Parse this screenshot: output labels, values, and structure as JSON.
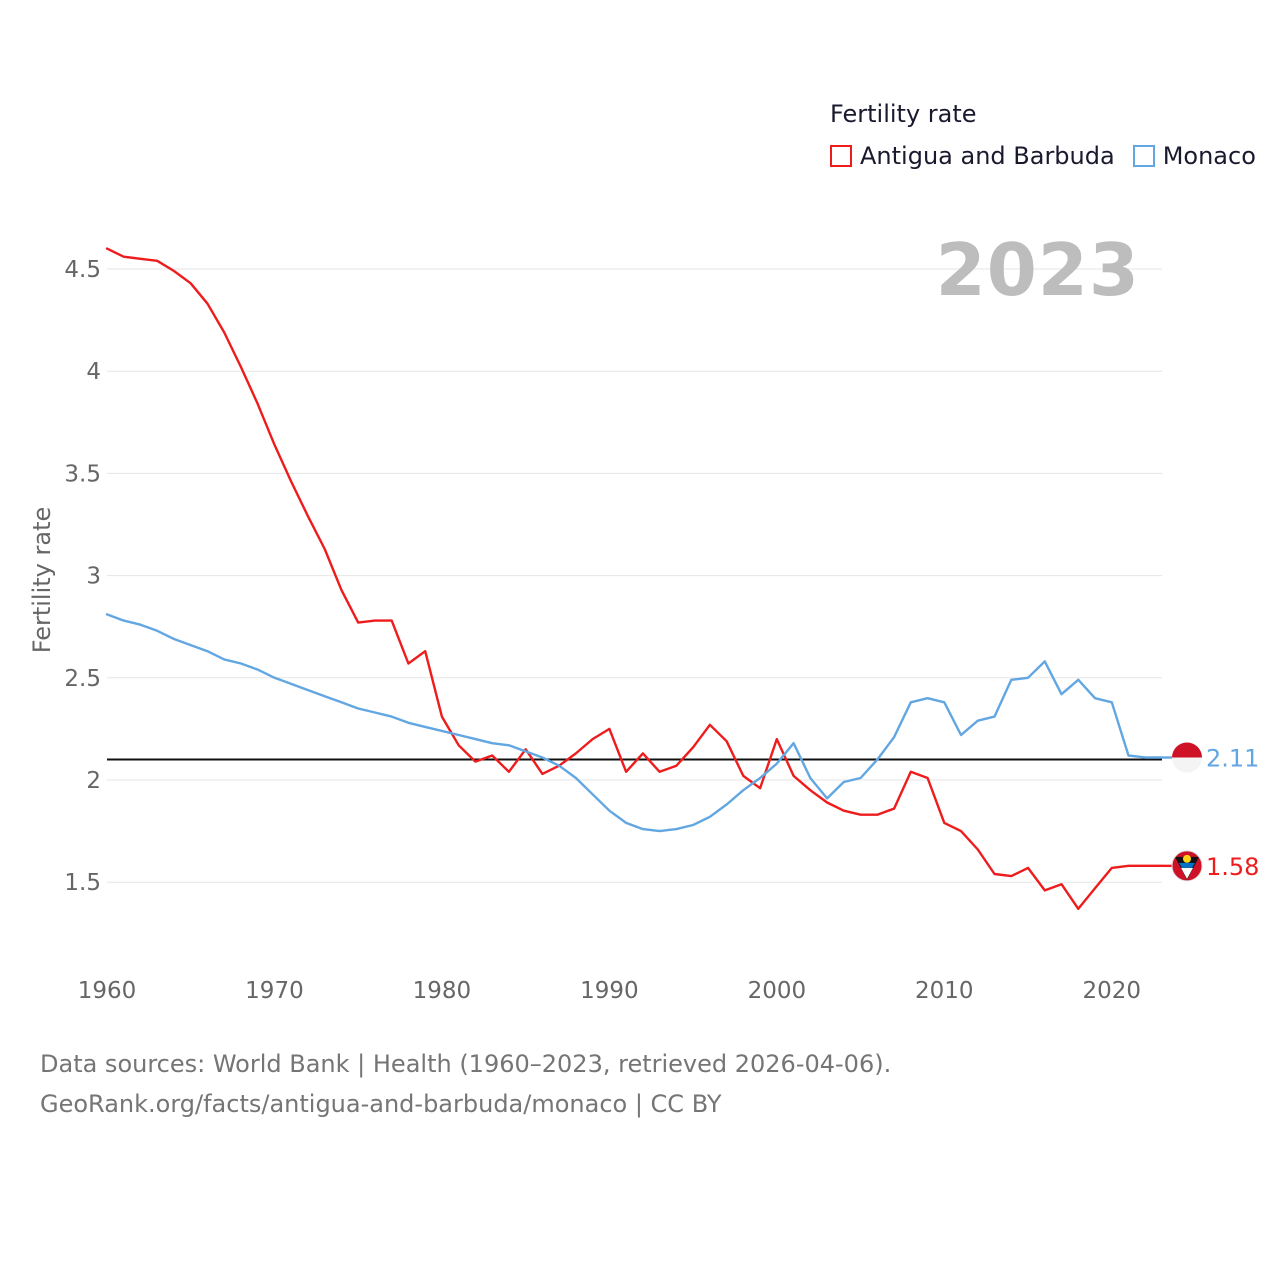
{
  "colors": {
    "antigua": "#ee1c1c",
    "monaco": "#62a6e2",
    "reference": "#111111",
    "grid": "#e6e6e6",
    "year": "#bdbdbd"
  },
  "chart_data": {
    "type": "line",
    "legend_title": "Fertility rate",
    "year_label": "2023",
    "ylabel": "Fertility rate",
    "xlabel": "",
    "xlim": [
      1960,
      2023
    ],
    "ylim": [
      1.2,
      4.6
    ],
    "y_ticks": [
      1.5,
      2,
      2.5,
      3,
      3.5,
      4,
      4.5
    ],
    "y_tick_labels": [
      "1.5",
      "2",
      "2.5",
      "3",
      "3.5",
      "4",
      "4.5"
    ],
    "x_ticks": [
      1960,
      1970,
      1980,
      1990,
      2000,
      2010,
      2020
    ],
    "x_tick_labels": [
      "1960",
      "1970",
      "1980",
      "1990",
      "2000",
      "2010",
      "2020"
    ],
    "reference_line": 2.1,
    "legend_position": "top-right",
    "x": [
      1960,
      1961,
      1962,
      1963,
      1964,
      1965,
      1966,
      1967,
      1968,
      1969,
      1970,
      1971,
      1972,
      1973,
      1974,
      1975,
      1976,
      1977,
      1978,
      1979,
      1980,
      1981,
      1982,
      1983,
      1984,
      1985,
      1986,
      1987,
      1988,
      1989,
      1990,
      1991,
      1992,
      1993,
      1994,
      1995,
      1996,
      1997,
      1998,
      1999,
      2000,
      2001,
      2002,
      2003,
      2004,
      2005,
      2006,
      2007,
      2008,
      2009,
      2010,
      2011,
      2012,
      2013,
      2014,
      2015,
      2016,
      2017,
      2018,
      2019,
      2020,
      2021,
      2022,
      2023
    ],
    "series": [
      {
        "name": "Antigua and Barbuda",
        "color": "#ee1c1c",
        "end_label": "1.58",
        "values": [
          4.6,
          4.56,
          4.55,
          4.54,
          4.49,
          4.43,
          4.33,
          4.19,
          4.02,
          3.84,
          3.64,
          3.46,
          3.29,
          3.13,
          2.93,
          2.77,
          2.78,
          2.78,
          2.57,
          2.63,
          2.31,
          2.17,
          2.09,
          2.12,
          2.04,
          2.15,
          2.03,
          2.07,
          2.13,
          2.2,
          2.25,
          2.04,
          2.13,
          2.04,
          2.07,
          2.16,
          2.27,
          2.19,
          2.02,
          1.96,
          2.2,
          2.02,
          1.95,
          1.89,
          1.85,
          1.83,
          1.83,
          1.86,
          2.04,
          2.01,
          1.79,
          1.75,
          1.66,
          1.54,
          1.53,
          1.57,
          1.46,
          1.49,
          1.37,
          1.47,
          1.57,
          1.58,
          1.58,
          1.58
        ]
      },
      {
        "name": "Monaco",
        "color": "#62a6e2",
        "end_label": "2.11",
        "values": [
          2.81,
          2.78,
          2.76,
          2.73,
          2.69,
          2.66,
          2.63,
          2.59,
          2.57,
          2.54,
          2.5,
          2.47,
          2.44,
          2.41,
          2.38,
          2.35,
          2.33,
          2.31,
          2.28,
          2.26,
          2.24,
          2.22,
          2.2,
          2.18,
          2.17,
          2.14,
          2.11,
          2.07,
          2.01,
          1.93,
          1.85,
          1.79,
          1.76,
          1.75,
          1.76,
          1.78,
          1.82,
          1.88,
          1.95,
          2.01,
          2.08,
          2.18,
          2.01,
          1.91,
          1.99,
          2.01,
          2.1,
          2.21,
          2.38,
          2.4,
          2.38,
          2.22,
          2.29,
          2.31,
          2.49,
          2.5,
          2.58,
          2.42,
          2.49,
          2.4,
          2.38,
          2.12,
          2.11,
          2.11
        ]
      }
    ]
  },
  "source": {
    "line1": "Data sources: World Bank | Health (1960–2023, retrieved 2026-04-06).",
    "line2": "GeoRank.org/facts/antigua-and-barbuda/monaco | CC BY"
  }
}
